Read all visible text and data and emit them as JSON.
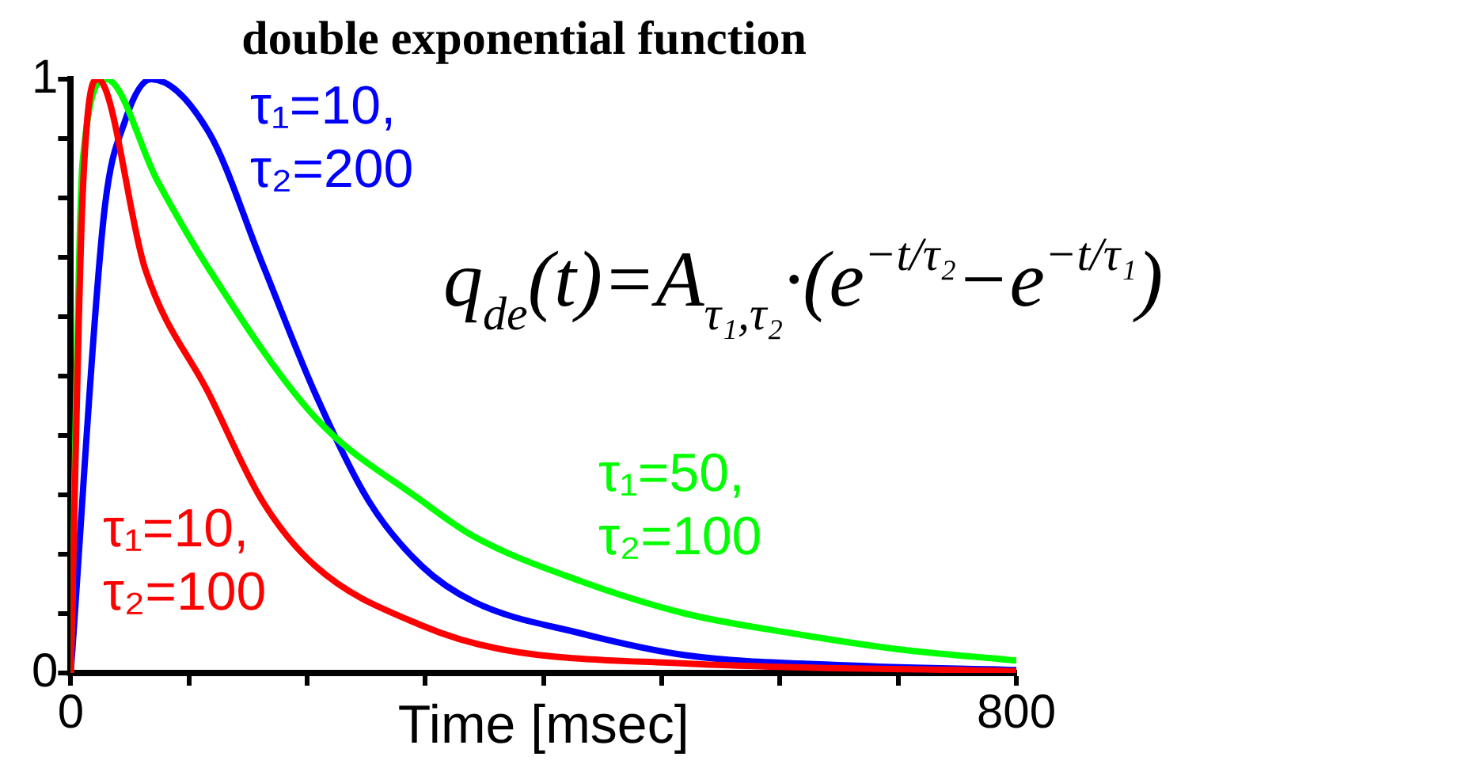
{
  "chart_data": {
    "type": "line",
    "title": "double exponential function",
    "xlabel": "Time [msec]",
    "xlim": [
      0,
      800
    ],
    "xticks": [
      0,
      {
        "value": 100,
        "label": null
      },
      {
        "value": 200,
        "label": null
      },
      {
        "value": 300,
        "label": null
      },
      {
        "value": 400,
        "label": null
      },
      {
        "value": 500,
        "label": null
      },
      {
        "value": 600,
        "label": null
      },
      {
        "value": 700,
        "label": null
      },
      800
    ],
    "ylim": [
      0,
      1
    ],
    "yticks": [
      0,
      {
        "value": 0.1,
        "label": null
      },
      {
        "value": 0.2,
        "label": null
      },
      {
        "value": 0.3,
        "label": null
      },
      {
        "value": 0.4,
        "label": null
      },
      {
        "value": 0.5,
        "label": null
      },
      {
        "value": 0.6,
        "label": null
      },
      {
        "value": 0.7,
        "label": null
      },
      {
        "value": 0.8,
        "label": null
      },
      {
        "value": 0.9,
        "label": null
      },
      1
    ],
    "grid": false,
    "legend": false,
    "marker": "none",
    "line_style": "solid",
    "series": [
      {
        "name": "τ₁=10, τ₂=200",
        "color": "#0000ff",
        "x": [
          0,
          28,
          46,
          68,
          117,
          162,
          207,
          252,
          297,
          341,
          431,
          520,
          655,
          800
        ],
        "values": [
          0,
          0.77,
          0.93,
          1.0,
          0.91,
          0.69,
          0.47,
          0.29,
          0.18,
          0.12,
          0.067,
          0.03,
          0.013,
          0.005
        ]
      },
      {
        "name": "τ₁=50, τ₂=100",
        "color": "#00ff00",
        "x": [
          0,
          10,
          30,
          73,
          117,
          207,
          297,
          341,
          431,
          520,
          610,
          700,
          800
        ],
        "values": [
          0,
          0.86,
          1.0,
          0.83,
          0.68,
          0.43,
          0.29,
          0.23,
          0.155,
          0.1,
          0.067,
          0.04,
          0.021
        ]
      },
      {
        "name": "τ₁=10, τ₂=100",
        "color": "#ff0000",
        "x": [
          0,
          10,
          23,
          63,
          117,
          162,
          207,
          297,
          364,
          520,
          800
        ],
        "values": [
          0,
          0.8,
          1.0,
          0.68,
          0.47,
          0.29,
          0.18,
          0.08,
          0.04,
          0.016,
          0.003
        ]
      }
    ],
    "annotations": [
      "q$_{de}$(t)=A$_{τ₁,τ₂}$·(e$^{−t/τ₂}$−e$^{−t/τ₁}$)"
    ]
  }
}
